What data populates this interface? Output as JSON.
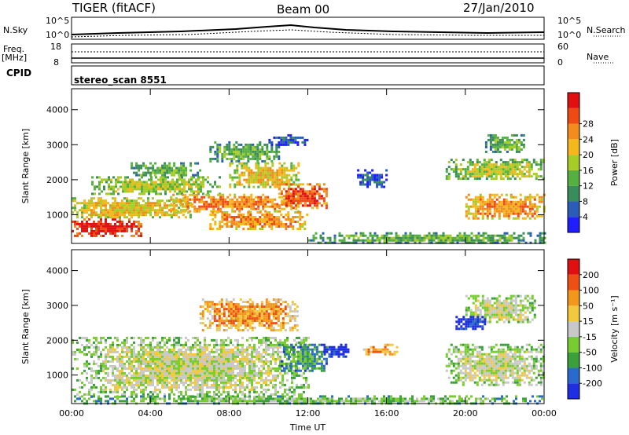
{
  "header": {
    "radar": "TIGER (fitACF)",
    "beam": "Beam 00",
    "date": "27/Jan/2010"
  },
  "top_panel": {
    "left_label": "N.Sky",
    "right_label": "N.Search",
    "left_ticks": [
      "10^5",
      "10^0"
    ],
    "right_ticks": [
      "10^5",
      "10^0"
    ]
  },
  "freq_panel": {
    "left_label_1": "Freq.",
    "left_label_2": "[MHz]",
    "right_label": "Nave",
    "left_ticks": [
      "18",
      "8"
    ],
    "right_ticks": [
      "60",
      "0"
    ]
  },
  "cpid_panel": {
    "label": "CPID",
    "program": "stereo_scan 8551"
  },
  "chart_data": [
    {
      "type": "heatmap",
      "name": "power",
      "ylabel": "Slant Range [km]",
      "xlabel": "Time UT",
      "xlim": [
        0,
        24
      ],
      "ylim": [
        180,
        4600
      ],
      "y_ticks": [
        "1000",
        "2000",
        "3000",
        "4000"
      ],
      "x_ticks": [
        "00:00",
        "04:00",
        "08:00",
        "12:00",
        "16:00",
        "20:00",
        "00:00"
      ],
      "colorbar": {
        "label": "Power [dB]",
        "ticks": [
          "4",
          "8",
          "12",
          "16",
          "20",
          "24",
          "28"
        ],
        "colors": [
          "#1e1eff",
          "#2a5cb8",
          "#3a8c5a",
          "#55b040",
          "#a6cc28",
          "#f2b81c",
          "#f28c1a",
          "#ee4a14",
          "#e01010"
        ]
      },
      "regions": [
        {
          "t": [
            0.0,
            3.5
          ],
          "r": [
            400,
            900
          ],
          "level": 8
        },
        {
          "t": [
            0.0,
            6.0
          ],
          "r": [
            900,
            1500
          ],
          "level": 5
        },
        {
          "t": [
            1.0,
            7.5
          ],
          "r": [
            1600,
            2100
          ],
          "level": 4
        },
        {
          "t": [
            3.0,
            6.5
          ],
          "r": [
            2100,
            2500
          ],
          "level": 3
        },
        {
          "t": [
            5.0,
            11.5
          ],
          "r": [
            1100,
            1600
          ],
          "level": 6
        },
        {
          "t": [
            7.0,
            12.0
          ],
          "r": [
            600,
            1100
          ],
          "level": 6
        },
        {
          "t": [
            7.0,
            10.5
          ],
          "r": [
            2500,
            3100
          ],
          "level": 3
        },
        {
          "t": [
            8.0,
            11.5
          ],
          "r": [
            1800,
            2500
          ],
          "level": 5
        },
        {
          "t": [
            10.5,
            13.0
          ],
          "r": [
            1200,
            1900
          ],
          "level": 7
        },
        {
          "t": [
            10.0,
            12.0
          ],
          "r": [
            3000,
            3300
          ],
          "level": 1
        },
        {
          "t": [
            12.0,
            24.0
          ],
          "r": [
            200,
            500
          ],
          "level": 3
        },
        {
          "t": [
            14.5,
            16.0
          ],
          "r": [
            1800,
            2300
          ],
          "level": 1
        },
        {
          "t": [
            19.0,
            24.0
          ],
          "r": [
            2000,
            2600
          ],
          "level": 4
        },
        {
          "t": [
            20.0,
            24.0
          ],
          "r": [
            900,
            1600
          ],
          "level": 6
        },
        {
          "t": [
            21.0,
            23.0
          ],
          "r": [
            2800,
            3300
          ],
          "level": 3
        }
      ]
    },
    {
      "type": "heatmap",
      "name": "velocity",
      "ylabel": "Slant Range [km]",
      "xlabel": "Time UT",
      "xlim": [
        0,
        24
      ],
      "ylim": [
        180,
        4600
      ],
      "y_ticks": [
        "1000",
        "2000",
        "3000",
        "4000"
      ],
      "x_ticks": [
        "00:00",
        "04:00",
        "08:00",
        "12:00",
        "16:00",
        "20:00",
        "00:00"
      ],
      "colorbar": {
        "label": "Velocity [m s⁻¹]",
        "ticks": [
          "200",
          "100",
          "50",
          "15",
          "-15",
          "-50",
          "-100",
          "-200"
        ],
        "colors": [
          "#1e2ee0",
          "#2a6acc",
          "#3aa03a",
          "#78cc30",
          "#c8c8c8",
          "#f2c83c",
          "#f2961c",
          "#ee5014",
          "#e01010"
        ]
      },
      "regions": [
        {
          "t": [
            0.0,
            12.0
          ],
          "r": [
            400,
            2100
          ],
          "level": 4
        },
        {
          "t": [
            0.0,
            24.0
          ],
          "r": [
            200,
            420
          ],
          "level": 3
        },
        {
          "t": [
            6.5,
            11.5
          ],
          "r": [
            2300,
            3200
          ],
          "level": 6
        },
        {
          "t": [
            10.5,
            13.0
          ],
          "r": [
            1100,
            1900
          ],
          "level": 2
        },
        {
          "t": [
            12.8,
            14.0
          ],
          "r": [
            1500,
            1900
          ],
          "level": 0
        },
        {
          "t": [
            14.8,
            16.5
          ],
          "r": [
            1600,
            1900
          ],
          "level": 6
        },
        {
          "t": [
            19.0,
            24.0
          ],
          "r": [
            700,
            1900
          ],
          "level": 4
        },
        {
          "t": [
            20.0,
            23.5
          ],
          "r": [
            2500,
            3300
          ],
          "level": 4
        },
        {
          "t": [
            19.5,
            21.0
          ],
          "r": [
            2300,
            2700
          ],
          "level": 0
        }
      ]
    }
  ]
}
